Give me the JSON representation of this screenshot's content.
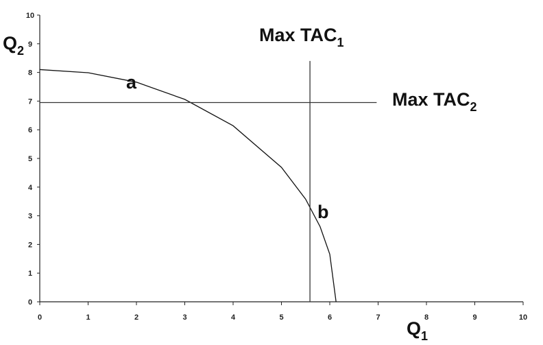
{
  "chart_data": {
    "type": "line",
    "y_label": {
      "text": "Q",
      "subscript": "2"
    },
    "x_label": {
      "text": "Q",
      "subscript": "1"
    },
    "annotations": [
      {
        "text": "Max TAC",
        "subscript": "1"
      },
      {
        "text": "Max TAC",
        "subscript": "2"
      },
      {
        "text": "a"
      },
      {
        "text": "b"
      }
    ],
    "series": [
      {
        "color": "#111111",
        "x": [
          0,
          1,
          2,
          3,
          4,
          5,
          5.5,
          5.8,
          6,
          6.13
        ],
        "values": [
          8.1,
          7.99,
          7.66,
          7.06,
          6.14,
          4.69,
          3.58,
          2.62,
          1.66,
          0
        ]
      },
      {
        "color": "#333333",
        "x": [
          5.59,
          5.59
        ],
        "values": [
          8.4,
          0
        ]
      },
      {
        "color": "#333333",
        "x": [
          0,
          6.97
        ],
        "values": [
          6.95,
          6.95
        ]
      }
    ],
    "xlim": [
      0,
      10
    ],
    "ylim": [
      0,
      10
    ],
    "xticks": [
      0,
      1,
      2,
      3,
      4,
      5,
      6,
      7,
      8,
      9,
      10
    ],
    "yticks": [
      0,
      1,
      2,
      3,
      4,
      5,
      6,
      7,
      8,
      9,
      10
    ]
  }
}
